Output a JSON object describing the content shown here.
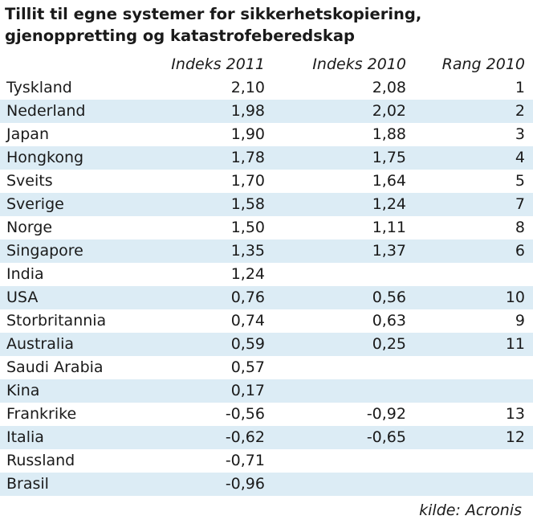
{
  "title_line1": "Tillit til egne systemer for sikkerhetskopiering,",
  "title_line2": "gjenoppretting og katastrofeberedskap",
  "source": "kilde: Acronis",
  "colors": {
    "row_shade": "#dcecf5",
    "text": "#1a1a1a"
  },
  "chart_data": {
    "type": "table",
    "title": "Tillit til egne systemer for sikkerhetskopiering, gjenoppretting og katastrofeberedskap",
    "columns": [
      "",
      "Indeks 2011",
      "Indeks 2010",
      "Rang 2010"
    ],
    "rows": [
      {
        "country": "Tyskland",
        "indeks_2011": "2,10",
        "indeks_2010": "2,08",
        "rang_2010": "1"
      },
      {
        "country": "Nederland",
        "indeks_2011": "1,98",
        "indeks_2010": "2,02",
        "rang_2010": "2"
      },
      {
        "country": "Japan",
        "indeks_2011": "1,90",
        "indeks_2010": "1,88",
        "rang_2010": "3"
      },
      {
        "country": "Hongkong",
        "indeks_2011": "1,78",
        "indeks_2010": "1,75",
        "rang_2010": "4"
      },
      {
        "country": "Sveits",
        "indeks_2011": "1,70",
        "indeks_2010": "1,64",
        "rang_2010": "5"
      },
      {
        "country": "Sverige",
        "indeks_2011": "1,58",
        "indeks_2010": "1,24",
        "rang_2010": "7"
      },
      {
        "country": "Norge",
        "indeks_2011": "1,50",
        "indeks_2010": "1,11",
        "rang_2010": "8"
      },
      {
        "country": "Singapore",
        "indeks_2011": "1,35",
        "indeks_2010": "1,37",
        "rang_2010": "6"
      },
      {
        "country": "India",
        "indeks_2011": "1,24",
        "indeks_2010": "",
        "rang_2010": ""
      },
      {
        "country": "USA",
        "indeks_2011": "0,76",
        "indeks_2010": "0,56",
        "rang_2010": "10"
      },
      {
        "country": "Storbritannia",
        "indeks_2011": "0,74",
        "indeks_2010": "0,63",
        "rang_2010": "9"
      },
      {
        "country": "Australia",
        "indeks_2011": "0,59",
        "indeks_2010": "0,25",
        "rang_2010": "11"
      },
      {
        "country": "Saudi Arabia",
        "indeks_2011": "0,57",
        "indeks_2010": "",
        "rang_2010": ""
      },
      {
        "country": "Kina",
        "indeks_2011": "0,17",
        "indeks_2010": "",
        "rang_2010": ""
      },
      {
        "country": "Frankrike",
        "indeks_2011": "-0,56",
        "indeks_2010": "-0,92",
        "rang_2010": "13"
      },
      {
        "country": "Italia",
        "indeks_2011": "-0,62",
        "indeks_2010": "-0,65",
        "rang_2010": "12"
      },
      {
        "country": "Russland",
        "indeks_2011": "-0,71",
        "indeks_2010": "",
        "rang_2010": ""
      },
      {
        "country": "Brasil",
        "indeks_2011": "-0,96",
        "indeks_2010": "",
        "rang_2010": ""
      }
    ]
  }
}
